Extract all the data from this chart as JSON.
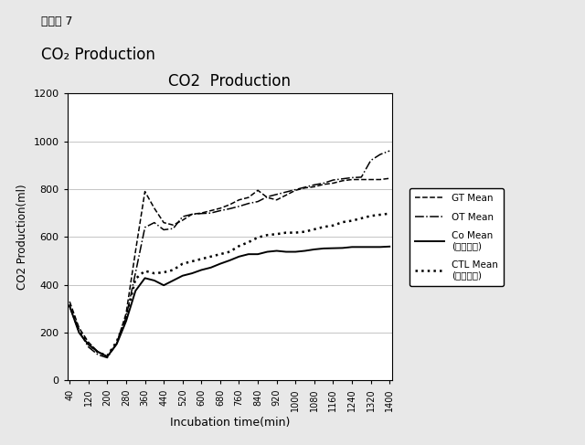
{
  "title": "CO2  Production",
  "xlabel": "Incubation time(min)",
  "ylabel": "CO2 Production(ml)",
  "suptitle_jp": "グラフ 7",
  "suptitle_en": "CO₂ Production",
  "x_ticks": [
    40,
    120,
    200,
    280,
    360,
    440,
    520,
    600,
    680,
    760,
    840,
    920,
    1000,
    1080,
    1160,
    1240,
    1320,
    1400
  ],
  "ylim": [
    0,
    1200
  ],
  "xlim": [
    40,
    1400
  ],
  "background_color": "#f0f0f0",
  "plot_bg": "#ffffff",
  "legend_labels": [
    "GT Mean",
    "OT Mean",
    "Co Mean\n(実施例２)",
    "CTL Mean\n(比較例２)"
  ],
  "GT_x": [
    40,
    80,
    120,
    160,
    200,
    240,
    280,
    320,
    360,
    400,
    440,
    480,
    520,
    560,
    600,
    640,
    680,
    720,
    760,
    800,
    840,
    880,
    920,
    960,
    1000,
    1040,
    1080,
    1120,
    1160,
    1200,
    1240,
    1280,
    1320,
    1360,
    1400
  ],
  "GT_y": [
    330,
    220,
    160,
    120,
    100,
    155,
    280,
    540,
    790,
    720,
    660,
    650,
    670,
    695,
    700,
    710,
    720,
    735,
    755,
    765,
    795,
    765,
    755,
    775,
    795,
    805,
    810,
    820,
    825,
    835,
    840,
    840,
    840,
    840,
    845
  ],
  "OT_x": [
    40,
    80,
    120,
    160,
    200,
    240,
    280,
    320,
    360,
    400,
    440,
    480,
    520,
    560,
    600,
    640,
    680,
    720,
    760,
    800,
    840,
    880,
    920,
    960,
    1000,
    1040,
    1080,
    1120,
    1160,
    1200,
    1240,
    1280,
    1320,
    1360,
    1400
  ],
  "OT_y": [
    310,
    205,
    140,
    108,
    95,
    155,
    265,
    450,
    640,
    660,
    630,
    635,
    685,
    695,
    698,
    700,
    710,
    718,
    728,
    740,
    748,
    768,
    778,
    788,
    798,
    808,
    818,
    825,
    838,
    843,
    848,
    850,
    920,
    945,
    960
  ],
  "Co_x": [
    40,
    80,
    120,
    160,
    200,
    240,
    280,
    320,
    360,
    400,
    440,
    480,
    520,
    560,
    600,
    640,
    680,
    720,
    760,
    800,
    840,
    880,
    920,
    960,
    1000,
    1040,
    1080,
    1120,
    1160,
    1200,
    1240,
    1280,
    1320,
    1360,
    1400
  ],
  "Co_y": [
    310,
    200,
    150,
    120,
    100,
    152,
    248,
    375,
    428,
    418,
    398,
    418,
    438,
    448,
    462,
    472,
    488,
    502,
    518,
    528,
    528,
    538,
    542,
    538,
    538,
    542,
    548,
    552,
    553,
    554,
    558,
    558,
    558,
    558,
    560
  ],
  "CTL_x": [
    40,
    80,
    120,
    160,
    200,
    240,
    280,
    320,
    360,
    400,
    440,
    480,
    520,
    560,
    600,
    640,
    680,
    720,
    760,
    800,
    840,
    880,
    920,
    960,
    1000,
    1040,
    1080,
    1120,
    1160,
    1200,
    1240,
    1280,
    1320,
    1360,
    1400
  ],
  "CTL_y": [
    318,
    208,
    152,
    118,
    103,
    162,
    262,
    425,
    458,
    448,
    452,
    462,
    488,
    498,
    508,
    518,
    528,
    538,
    562,
    578,
    598,
    608,
    612,
    618,
    618,
    622,
    632,
    642,
    648,
    662,
    668,
    678,
    688,
    693,
    698
  ]
}
